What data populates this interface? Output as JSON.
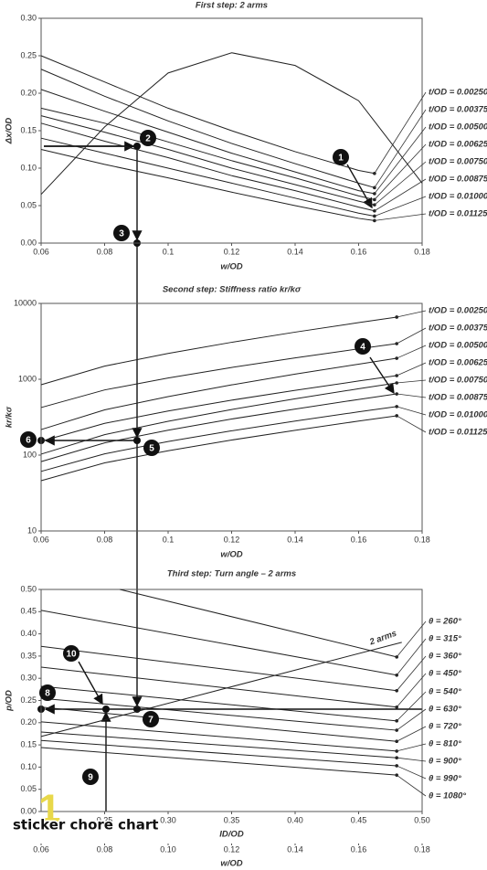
{
  "chart_data": [
    {
      "type": "line",
      "title": "First step: 2 arms",
      "xlabel": "w/OD",
      "ylabel": "Δx/OD",
      "xlim": [
        0.06,
        0.18
      ],
      "xticks": [
        0.06,
        0.08,
        0.1,
        0.12,
        0.14,
        0.16,
        0.18
      ],
      "ylim": [
        0,
        0.3
      ],
      "yticks": [
        {
          "value": 0,
          "label": "0.00"
        },
        0.05,
        {
          "value": 0.1,
          "label": "0.10"
        },
        0.15,
        {
          "value": 0.2,
          "label": "0.20"
        },
        0.25,
        {
          "value": 0.3,
          "label": "0.30"
        }
      ],
      "series": [
        {
          "color": "#222222",
          "x": [
            0.06,
            0.08,
            0.1,
            0.12,
            0.14,
            0.16,
            0.18
          ],
          "values": [
            0.065,
            0.155,
            0.227,
            0.254,
            0.237,
            0.19,
            0.08
          ]
        },
        {
          "name": "t/OD = 0.00250",
          "color": "#222222",
          "x": [
            0.06,
            0.08,
            0.1,
            0.12,
            0.14,
            0.16,
            0.165
          ],
          "values": [
            0.25,
            0.215,
            0.18,
            0.15,
            0.122,
            0.097,
            0.093
          ]
        },
        {
          "name": "t/OD = 0.00375",
          "color": "#222222",
          "x": [
            0.06,
            0.08,
            0.1,
            0.12,
            0.14,
            0.16,
            0.165
          ],
          "values": [
            0.232,
            0.196,
            0.163,
            0.133,
            0.106,
            0.08,
            0.074
          ]
        },
        {
          "name": "t/OD = 0.00500",
          "color": "#222222",
          "x": [
            0.06,
            0.08,
            0.1,
            0.12,
            0.14,
            0.16,
            0.165
          ],
          "values": [
            0.205,
            0.176,
            0.148,
            0.12,
            0.095,
            0.07,
            0.066
          ]
        },
        {
          "name": "t/OD = 0.00625",
          "color": "#222222",
          "x": [
            0.06,
            0.08,
            0.1,
            0.12,
            0.14,
            0.16,
            0.165
          ],
          "values": [
            0.18,
            0.16,
            0.135,
            0.11,
            0.087,
            0.063,
            0.058
          ]
        },
        {
          "name": "t/OD = 0.00750",
          "color": "#222222",
          "x": [
            0.06,
            0.08,
            0.1,
            0.12,
            0.14,
            0.16,
            0.165
          ],
          "values": [
            0.17,
            0.148,
            0.125,
            0.1,
            0.078,
            0.056,
            0.051
          ]
        },
        {
          "name": "t/OD = 0.00875",
          "color": "#222222",
          "x": [
            0.06,
            0.08,
            0.1,
            0.12,
            0.14,
            0.16,
            0.165
          ],
          "values": [
            0.16,
            0.136,
            0.114,
            0.09,
            0.07,
            0.048,
            0.043
          ]
        },
        {
          "name": "t/OD = 0.01000",
          "color": "#222222",
          "x": [
            0.06,
            0.08,
            0.1,
            0.12,
            0.14,
            0.16,
            0.165
          ],
          "values": [
            0.14,
            0.12,
            0.1,
            0.08,
            0.06,
            0.04,
            0.036
          ]
        },
        {
          "name": "t/OD = 0.01125",
          "color": "#222222",
          "x": [
            0.06,
            0.08,
            0.1,
            0.12,
            0.14,
            0.16,
            0.165
          ],
          "values": [
            0.125,
            0.105,
            0.087,
            0.068,
            0.05,
            0.033,
            0.03
          ]
        }
      ]
    },
    {
      "type": "line",
      "title": "Second step: Stiffness ratio kr/kσ",
      "xlabel": "w/OD",
      "ylabel": "kr/kσ",
      "log_y": true,
      "xlim": [
        0.06,
        0.18
      ],
      "xticks": [
        0.06,
        0.08,
        0.1,
        0.12,
        0.14,
        0.16,
        0.18
      ],
      "ylim": [
        10,
        10000
      ],
      "yticks": [
        10,
        100,
        1000,
        10000
      ],
      "series": [
        {
          "name": "t/OD = 0.00250",
          "color": "#222222",
          "x": [
            0.06,
            0.08,
            0.1,
            0.12,
            0.14,
            0.16,
            0.172
          ],
          "values": [
            847,
            1490,
            2190,
            3070,
            4180,
            5580,
            6600
          ]
        },
        {
          "name": "t/OD = 0.00375",
          "color": "#222222",
          "x": [
            0.06,
            0.08,
            0.1,
            0.12,
            0.14,
            0.16,
            0.172
          ],
          "values": [
            424,
            723,
            1040,
            1430,
            1910,
            2520,
            2950
          ]
        },
        {
          "name": "t/OD = 0.00500",
          "color": "#222222",
          "x": [
            0.06,
            0.08,
            0.1,
            0.12,
            0.14,
            0.16,
            0.172
          ],
          "values": [
            217,
            395,
            590,
            843,
            1170,
            1580,
            1890
          ]
        },
        {
          "name": "t/OD = 0.00625",
          "color": "#222222",
          "x": [
            0.06,
            0.08,
            0.1,
            0.12,
            0.14,
            0.16,
            0.172
          ],
          "values": [
            152,
            262,
            381,
            530,
            714,
            948,
            1117
          ]
        },
        {
          "name": "t/OD = 0.00750",
          "color": "#222222",
          "x": [
            0.06,
            0.08,
            0.1,
            0.12,
            0.14,
            0.16,
            0.172
          ],
          "values": [
            103,
            186,
            279,
            399,
            552,
            750,
            895
          ]
        },
        {
          "name": "t/OD = 0.00875",
          "color": "#222222",
          "x": [
            0.06,
            0.08,
            0.1,
            0.12,
            0.14,
            0.16,
            0.172
          ],
          "values": [
            82,
            145,
            213,
            299,
            405,
            542,
            641
          ]
        },
        {
          "name": "t/OD = 0.01000",
          "color": "#222222",
          "x": [
            0.06,
            0.08,
            0.1,
            0.12,
            0.14,
            0.16,
            0.172
          ],
          "values": [
            61,
            104,
            151,
            209,
            281,
            372,
            436
          ]
        },
        {
          "name": "t/OD = 0.01125",
          "color": "#222222",
          "x": [
            0.06,
            0.08,
            0.1,
            0.12,
            0.14,
            0.16,
            0.172
          ],
          "values": [
            46,
            79,
            114,
            158,
            212,
            281,
            330
          ]
        }
      ]
    },
    {
      "type": "line",
      "title": "Third step: Turn angle – 2 arms",
      "xlabel": "ID/OD",
      "ylabel": "p/OD",
      "x2label": "w/OD",
      "xlim": [
        0.2,
        0.5
      ],
      "xticks": [
        {
          "value": 0.25,
          "label": "0.25"
        },
        {
          "value": 0.3,
          "label": "0.30"
        },
        0.35,
        {
          "value": 0.4,
          "label": "0.40"
        },
        0.45,
        {
          "value": 0.5,
          "label": "0.50"
        }
      ],
      "x2lim": [
        0.06,
        0.18
      ],
      "x2ticks": [
        0.06,
        0.08,
        {
          "value": 0.1,
          "label": "0.10"
        },
        0.12,
        0.14,
        0.16,
        0.18
      ],
      "ylim": [
        0,
        0.5
      ],
      "yticks": [
        {
          "value": 0,
          "label": "0.00"
        },
        0.05,
        {
          "value": 0.1,
          "label": "0.10"
        },
        0.15,
        {
          "value": 0.2,
          "label": "0.20"
        },
        0.25,
        {
          "value": 0.3,
          "label": "0.30"
        },
        0.35,
        {
          "value": 0.4,
          "label": "0.40"
        },
        0.45,
        {
          "value": 0.5,
          "label": "0.50"
        }
      ],
      "series": [
        {
          "name": "θ = 260°",
          "color": "#222222",
          "x": [
            0.262,
            0.48
          ],
          "values": [
            0.5,
            0.348
          ]
        },
        {
          "name": "θ = 315°",
          "color": "#222222",
          "x": [
            0.2,
            0.48
          ],
          "values": [
            0.453,
            0.307
          ]
        },
        {
          "name": "θ = 360°",
          "color": "#222222",
          "x": [
            0.2,
            0.48
          ],
          "values": [
            0.372,
            0.272
          ]
        },
        {
          "name": "θ = 450°",
          "color": "#222222",
          "x": [
            0.2,
            0.48
          ],
          "values": [
            0.325,
            0.235
          ]
        },
        {
          "name": "θ = 540°",
          "color": "#222222",
          "x": [
            0.2,
            0.48
          ],
          "values": [
            0.282,
            0.204
          ]
        },
        {
          "name": "θ = 630°",
          "color": "#222222",
          "x": [
            0.2,
            0.48
          ],
          "values": [
            0.255,
            0.183
          ]
        },
        {
          "name": "θ = 720°",
          "color": "#222222",
          "x": [
            0.2,
            0.48
          ],
          "values": [
            0.235,
            0.158
          ]
        },
        {
          "name": "θ = 810°",
          "color": "#222222",
          "x": [
            0.2,
            0.48
          ],
          "values": [
            0.202,
            0.136
          ]
        },
        {
          "name": "θ = 900°",
          "color": "#222222",
          "x": [
            0.2,
            0.48
          ],
          "values": [
            0.179,
            0.121
          ]
        },
        {
          "name": "θ = 990°",
          "color": "#222222",
          "x": [
            0.2,
            0.48
          ],
          "values": [
            0.16,
            0.103
          ]
        },
        {
          "name": "θ = 1080°",
          "color": "#222222",
          "x": [
            0.2,
            0.48
          ],
          "values": [
            0.144,
            0.082
          ]
        },
        {
          "name": "2 arms",
          "label_inline": true,
          "color": "#222222",
          "x": [
            0.2,
            0.484
          ],
          "values": [
            0.169,
            0.381
          ]
        }
      ]
    }
  ],
  "markers": [
    "1",
    "2",
    "3",
    "4",
    "5",
    "6",
    "7",
    "8",
    "9",
    "10"
  ],
  "overlay_text": "sticker chore chart",
  "watermark": "1"
}
